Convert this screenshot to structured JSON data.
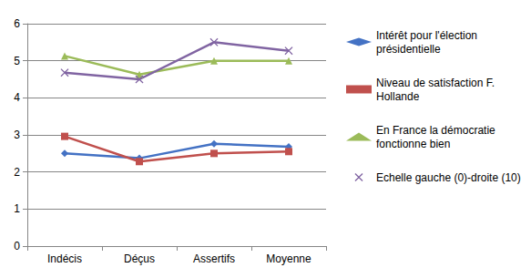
{
  "chart_data": {
    "type": "line",
    "categories": [
      "Indécis",
      "Déçus",
      "Assertifs",
      "Moyenne"
    ],
    "series": [
      {
        "name": "Intérêt pour l'élection présidentielle",
        "color": "#4472C4",
        "marker": "diamond",
        "values": [
          2.5,
          2.37,
          2.76,
          2.68
        ]
      },
      {
        "name": "Niveau de satisfaction F. Hollande",
        "color": "#C0504D",
        "marker": "square",
        "values": [
          2.96,
          2.28,
          2.5,
          2.55
        ]
      },
      {
        "name": "En France la démocratie fonctionne bien",
        "color": "#9BBB59",
        "marker": "triangle",
        "values": [
          5.13,
          4.63,
          5.0,
          5.0
        ]
      },
      {
        "name": "Echelle gauche (0)-droite (10)",
        "color": "#8064A2",
        "marker": "x",
        "values": [
          4.68,
          4.5,
          5.5,
          5.27
        ]
      }
    ],
    "ylim": [
      0,
      6
    ],
    "yticks": [
      0,
      1,
      2,
      3,
      4,
      5,
      6
    ],
    "grid": true,
    "legend": "right"
  }
}
